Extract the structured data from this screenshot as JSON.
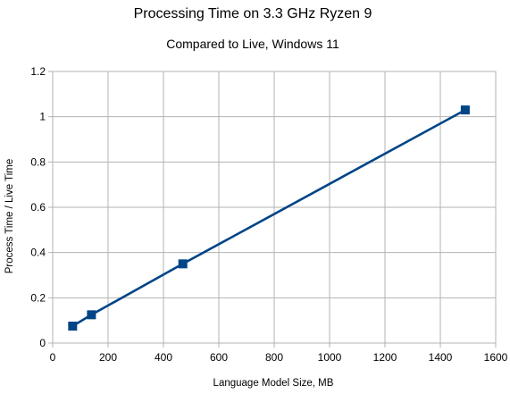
{
  "chart_data": {
    "type": "line",
    "title": "Processing Time on 3.3 GHz Ryzen 9",
    "subtitle": "Compared to Live, Windows 11",
    "xlabel": "Language Model Size, MB",
    "ylabel": "Process Time / Live Time",
    "xlim": [
      0,
      1600
    ],
    "ylim": [
      0,
      1.2
    ],
    "x_ticks": [
      "0",
      "200",
      "400",
      "600",
      "800",
      "1000",
      "1200",
      "1400",
      "1600"
    ],
    "y_ticks": [
      "0",
      "0.2",
      "0.4",
      "0.6",
      "0.8",
      "1",
      "1.2"
    ],
    "grid": true,
    "legend": false,
    "series": [
      {
        "color": "#004586",
        "marker": "square",
        "x": [
          72,
          140,
          470,
          1490
        ],
        "y": [
          0.075,
          0.125,
          0.35,
          1.03
        ]
      }
    ]
  }
}
